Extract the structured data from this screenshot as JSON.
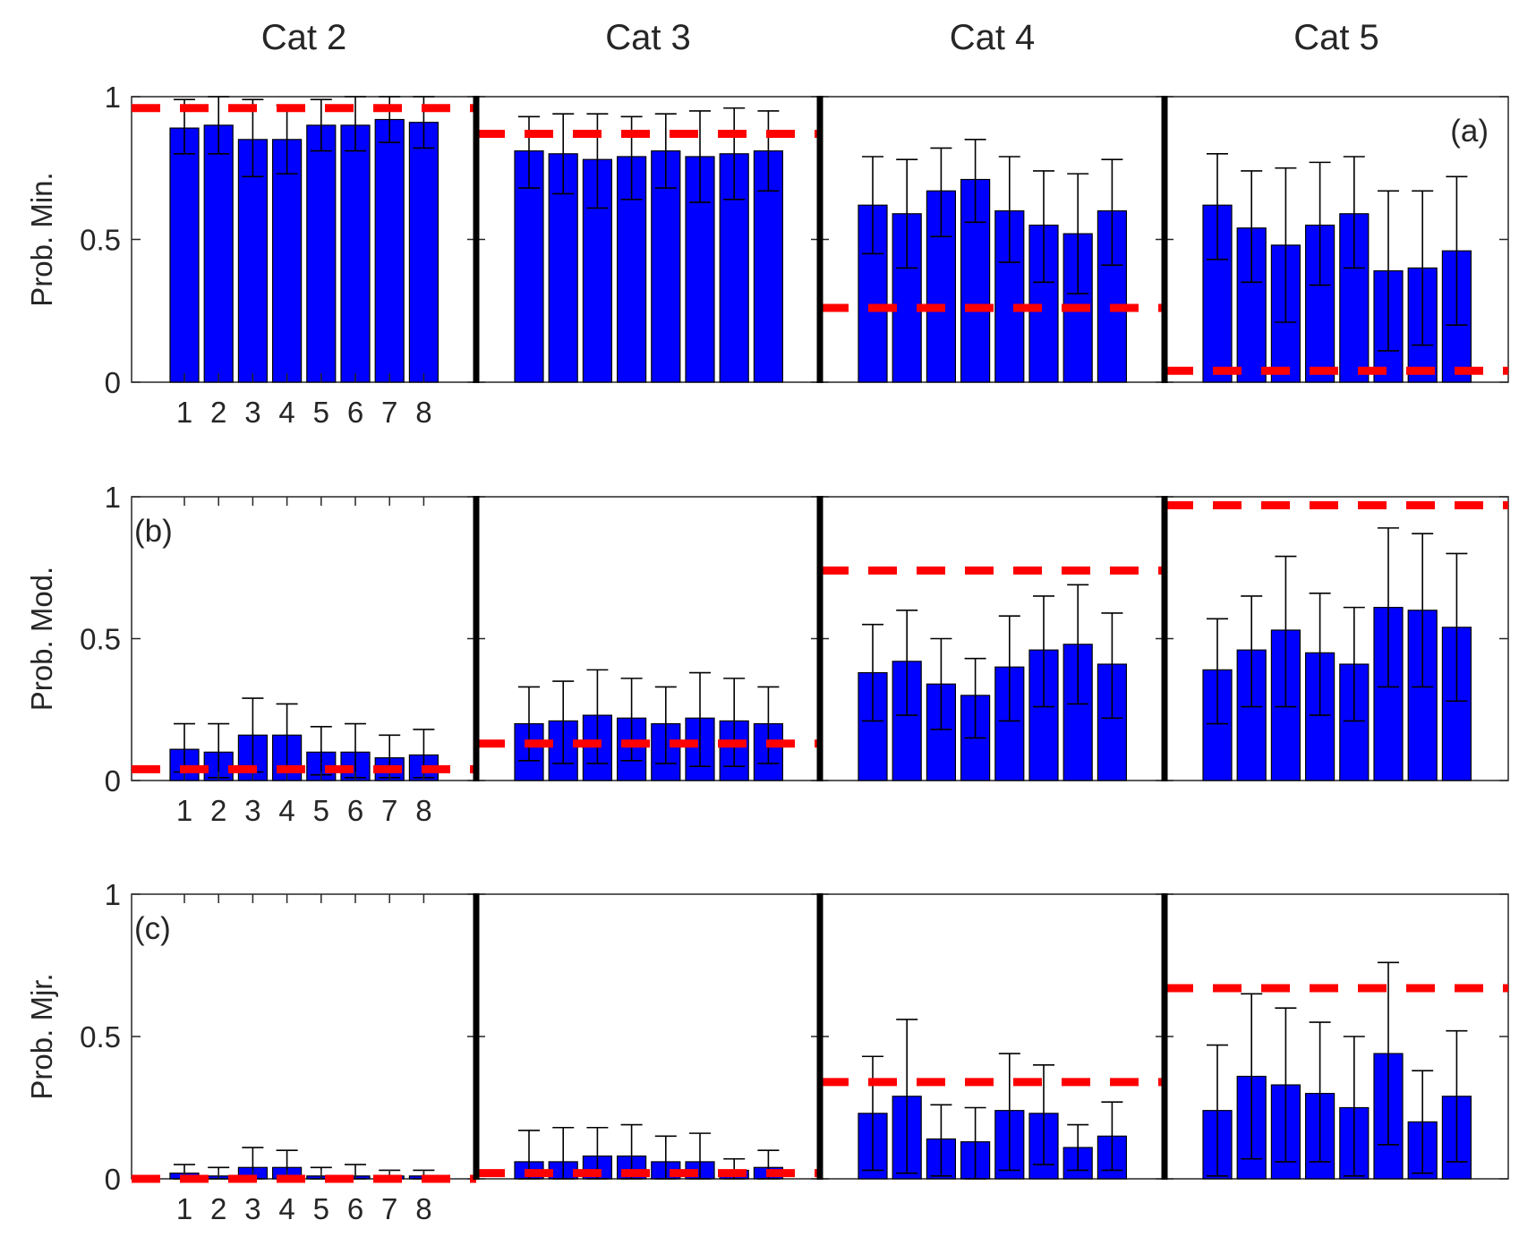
{
  "chart_data": {
    "type": "bar",
    "description": "Grouped bar chart with error bars: 3 rows (probability of minor, moderate, major damage) x 4 storm categories, 8 bars each; red dashed line = reference probability",
    "columns": [
      "Cat 2",
      "Cat 3",
      "Cat 4",
      "Cat 5"
    ],
    "x_tick_labels": [
      "1",
      "2",
      "3",
      "4",
      "5",
      "6",
      "7",
      "8"
    ],
    "y_tick_labels": [
      "0",
      "0.5",
      "1"
    ],
    "ylim": [
      0,
      1
    ],
    "colors": {
      "bar": "#0000ff",
      "reference": "#ff0000",
      "axis": "#000000",
      "text": "#262626"
    },
    "rows": [
      {
        "label": "(a)",
        "ylabel": "Prob. Min.",
        "panels": [
          {
            "reference": 0.96,
            "values": [
              0.89,
              0.9,
              0.85,
              0.85,
              0.9,
              0.9,
              0.92,
              0.91
            ],
            "err_low": [
              0.8,
              0.8,
              0.72,
              0.73,
              0.81,
              0.81,
              0.84,
              0.82
            ],
            "err_high": [
              0.99,
              1.0,
              0.99,
              0.97,
              0.99,
              1.0,
              1.0,
              1.0
            ]
          },
          {
            "reference": 0.87,
            "values": [
              0.81,
              0.8,
              0.78,
              0.79,
              0.81,
              0.79,
              0.8,
              0.81
            ],
            "err_low": [
              0.68,
              0.66,
              0.61,
              0.64,
              0.68,
              0.63,
              0.64,
              0.67
            ],
            "err_high": [
              0.93,
              0.94,
              0.94,
              0.93,
              0.94,
              0.95,
              0.96,
              0.95
            ]
          },
          {
            "reference": 0.26,
            "values": [
              0.62,
              0.59,
              0.67,
              0.71,
              0.6,
              0.55,
              0.52,
              0.6
            ],
            "err_low": [
              0.45,
              0.4,
              0.51,
              0.56,
              0.42,
              0.35,
              0.31,
              0.41
            ],
            "err_high": [
              0.79,
              0.78,
              0.82,
              0.85,
              0.79,
              0.74,
              0.73,
              0.78
            ]
          },
          {
            "reference": 0.04,
            "values": [
              0.62,
              0.54,
              0.48,
              0.55,
              0.59,
              0.39,
              0.4,
              0.46
            ],
            "err_low": [
              0.43,
              0.35,
              0.21,
              0.34,
              0.4,
              0.11,
              0.13,
              0.2
            ],
            "err_high": [
              0.8,
              0.74,
              0.75,
              0.77,
              0.79,
              0.67,
              0.67,
              0.72
            ]
          }
        ]
      },
      {
        "label": "(b)",
        "ylabel": "Prob. Mod.",
        "panels": [
          {
            "reference": 0.04,
            "values": [
              0.11,
              0.1,
              0.16,
              0.16,
              0.1,
              0.1,
              0.08,
              0.09
            ],
            "err_low": [
              0.03,
              0.01,
              0.03,
              0.04,
              0.02,
              0.01,
              0.01,
              0.01
            ],
            "err_high": [
              0.2,
              0.2,
              0.29,
              0.27,
              0.19,
              0.2,
              0.16,
              0.18
            ]
          },
          {
            "reference": 0.13,
            "values": [
              0.2,
              0.21,
              0.23,
              0.22,
              0.2,
              0.22,
              0.21,
              0.2
            ],
            "err_low": [
              0.07,
              0.06,
              0.06,
              0.07,
              0.06,
              0.05,
              0.05,
              0.06
            ],
            "err_high": [
              0.33,
              0.35,
              0.39,
              0.36,
              0.33,
              0.38,
              0.36,
              0.33
            ]
          },
          {
            "reference": 0.74,
            "values": [
              0.38,
              0.42,
              0.34,
              0.3,
              0.4,
              0.46,
              0.48,
              0.41
            ],
            "err_low": [
              0.21,
              0.23,
              0.18,
              0.15,
              0.21,
              0.26,
              0.27,
              0.22
            ],
            "err_high": [
              0.55,
              0.6,
              0.5,
              0.43,
              0.58,
              0.65,
              0.69,
              0.59
            ]
          },
          {
            "reference": 0.97,
            "values": [
              0.39,
              0.46,
              0.53,
              0.45,
              0.41,
              0.61,
              0.6,
              0.54
            ],
            "err_low": [
              0.2,
              0.26,
              0.26,
              0.23,
              0.21,
              0.33,
              0.33,
              0.28
            ],
            "err_high": [
              0.57,
              0.65,
              0.79,
              0.66,
              0.61,
              0.89,
              0.87,
              0.8
            ]
          }
        ]
      },
      {
        "label": "(c)",
        "ylabel": "Prob. Mjr.",
        "panels": [
          {
            "reference": 0.0,
            "values": [
              0.02,
              0.01,
              0.04,
              0.04,
              0.01,
              0.01,
              0.01,
              0.01
            ],
            "err_low": [
              0.0,
              0.0,
              0.0,
              0.0,
              0.0,
              0.0,
              0.0,
              0.0
            ],
            "err_high": [
              0.05,
              0.04,
              0.11,
              0.1,
              0.04,
              0.05,
              0.03,
              0.03
            ]
          },
          {
            "reference": 0.02,
            "values": [
              0.06,
              0.06,
              0.08,
              0.08,
              0.06,
              0.06,
              0.03,
              0.04
            ],
            "err_low": [
              0.0,
              0.0,
              0.0,
              0.0,
              0.0,
              0.0,
              0.0,
              0.0
            ],
            "err_high": [
              0.17,
              0.18,
              0.18,
              0.19,
              0.15,
              0.16,
              0.07,
              0.1
            ]
          },
          {
            "reference": 0.34,
            "values": [
              0.23,
              0.29,
              0.14,
              0.13,
              0.24,
              0.23,
              0.11,
              0.15
            ],
            "err_low": [
              0.03,
              0.02,
              0.01,
              0.0,
              0.03,
              0.05,
              0.03,
              0.03
            ],
            "err_high": [
              0.43,
              0.56,
              0.26,
              0.25,
              0.44,
              0.4,
              0.19,
              0.27
            ]
          },
          {
            "reference": 0.67,
            "values": [
              0.24,
              0.36,
              0.33,
              0.3,
              0.25,
              0.44,
              0.2,
              0.29
            ],
            "err_low": [
              0.01,
              0.07,
              0.06,
              0.06,
              0.01,
              0.12,
              0.02,
              0.06
            ],
            "err_high": [
              0.47,
              0.65,
              0.6,
              0.55,
              0.5,
              0.76,
              0.38,
              0.52
            ]
          }
        ]
      }
    ]
  }
}
